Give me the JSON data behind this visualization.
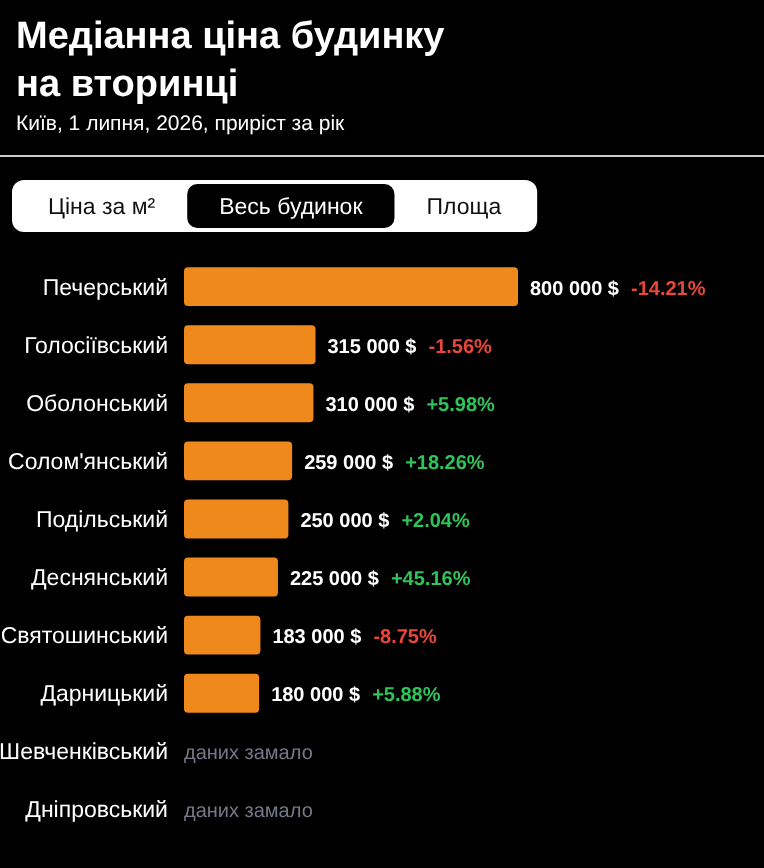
{
  "chart_data": {
    "type": "bar",
    "orientation": "horizontal",
    "title": "Медіанна ціна будинку на вторинці",
    "subtitle": "Київ, 1 липня, 2026, приріст за рік",
    "categories": [
      "Печерський",
      "Голосіївський",
      "Оболонський",
      "Солом'янський",
      "Подільський",
      "Деснянський",
      "Святошинський",
      "Дарницький",
      "Шевченківський",
      "Дніпровський"
    ],
    "values": [
      800000,
      315000,
      310000,
      259000,
      250000,
      225000,
      183000,
      180000,
      null,
      null
    ],
    "value_labels": [
      "800 000 $",
      "315 000 $",
      "310 000 $",
      "259 000 $",
      "250 000 $",
      "225 000 $",
      "183 000 $",
      "180 000 $",
      "даних замало",
      "даних замало"
    ],
    "color": "#f0891c",
    "annotations": [
      "Ціна за м²",
      "Весь будинок",
      "Площа",
      "-14.21%",
      "-1.56%",
      "+5.98%",
      "+18.26%",
      "+2.04%",
      "+45.16%",
      "-8.75%",
      "+5.88%"
    ]
  }
}
